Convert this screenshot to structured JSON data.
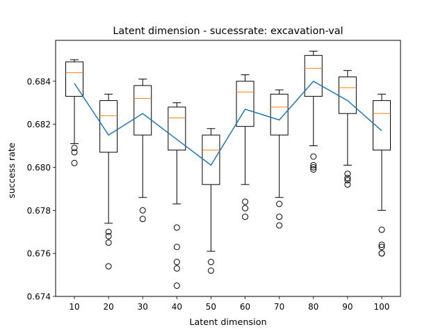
{
  "chart_data": {
    "type": "box",
    "title": "Latent dimension - sucessrate: excavation-val",
    "xlabel": "Latent dimension",
    "ylabel": "success rate",
    "categories": [
      "10",
      "20",
      "30",
      "40",
      "50",
      "60",
      "70",
      "80",
      "90",
      "100"
    ],
    "ylim": [
      0.674,
      0.6859
    ],
    "yticks": [
      "0.674",
      "0.676",
      "0.678",
      "0.680",
      "0.682",
      "0.684"
    ],
    "boxes": [
      {
        "category": "10",
        "whisker_low": 0.6811,
        "q1": 0.6833,
        "median": 0.6844,
        "q3": 0.6849,
        "whisker_high": 0.685,
        "outliers": [
          0.6809,
          0.6807,
          0.6802
        ]
      },
      {
        "category": "20",
        "whisker_low": 0.6774,
        "q1": 0.6807,
        "median": 0.6824,
        "q3": 0.6831,
        "whisker_high": 0.6834,
        "outliers": [
          0.677,
          0.6768,
          0.6765,
          0.6754
        ]
      },
      {
        "category": "30",
        "whisker_low": 0.6786,
        "q1": 0.6815,
        "median": 0.6832,
        "q3": 0.6838,
        "whisker_high": 0.6841,
        "outliers": [
          0.678,
          0.6776
        ]
      },
      {
        "category": "40",
        "whisker_low": 0.6783,
        "q1": 0.6808,
        "median": 0.6823,
        "q3": 0.6828,
        "whisker_high": 0.683,
        "outliers": [
          0.6772,
          0.6763,
          0.6756,
          0.6753,
          0.6745
        ]
      },
      {
        "category": "50",
        "whisker_low": 0.6761,
        "q1": 0.6792,
        "median": 0.6808,
        "q3": 0.6815,
        "whisker_high": 0.6818,
        "outliers": [
          0.6756,
          0.6752
        ]
      },
      {
        "category": "60",
        "whisker_low": 0.6792,
        "q1": 0.6819,
        "median": 0.6835,
        "q3": 0.684,
        "whisker_high": 0.6843,
        "outliers": [
          0.6784,
          0.6781,
          0.6777
        ]
      },
      {
        "category": "70",
        "whisker_low": 0.6786,
        "q1": 0.6815,
        "median": 0.6828,
        "q3": 0.6834,
        "whisker_high": 0.6836,
        "outliers": [
          0.6783,
          0.6777,
          0.6773
        ]
      },
      {
        "category": "80",
        "whisker_low": 0.681,
        "q1": 0.6833,
        "median": 0.6846,
        "q3": 0.6852,
        "whisker_high": 0.6854,
        "outliers": [
          0.6805,
          0.6801,
          0.68,
          0.6799
        ]
      },
      {
        "category": "90",
        "whisker_low": 0.6801,
        "q1": 0.6825,
        "median": 0.6837,
        "q3": 0.6842,
        "whisker_high": 0.6845,
        "outliers": [
          0.6797,
          0.6795,
          0.6794,
          0.6792
        ]
      },
      {
        "category": "100",
        "whisker_low": 0.678,
        "q1": 0.6808,
        "median": 0.6825,
        "q3": 0.6831,
        "whisker_high": 0.6834,
        "outliers": [
          0.6771,
          0.6764,
          0.6763,
          0.676,
          0.676
        ]
      }
    ],
    "series": [
      {
        "type": "line",
        "values": [
          0.6839,
          0.6815,
          0.6825,
          0.6813,
          0.6801,
          0.6827,
          0.6822,
          0.684,
          0.6831,
          0.6817
        ]
      }
    ],
    "colors": {
      "box": "#000000",
      "median": "#ff7f0e",
      "mean_line": "#1f77b4",
      "outlier": "#000000"
    },
    "grid": false,
    "legend": false
  }
}
